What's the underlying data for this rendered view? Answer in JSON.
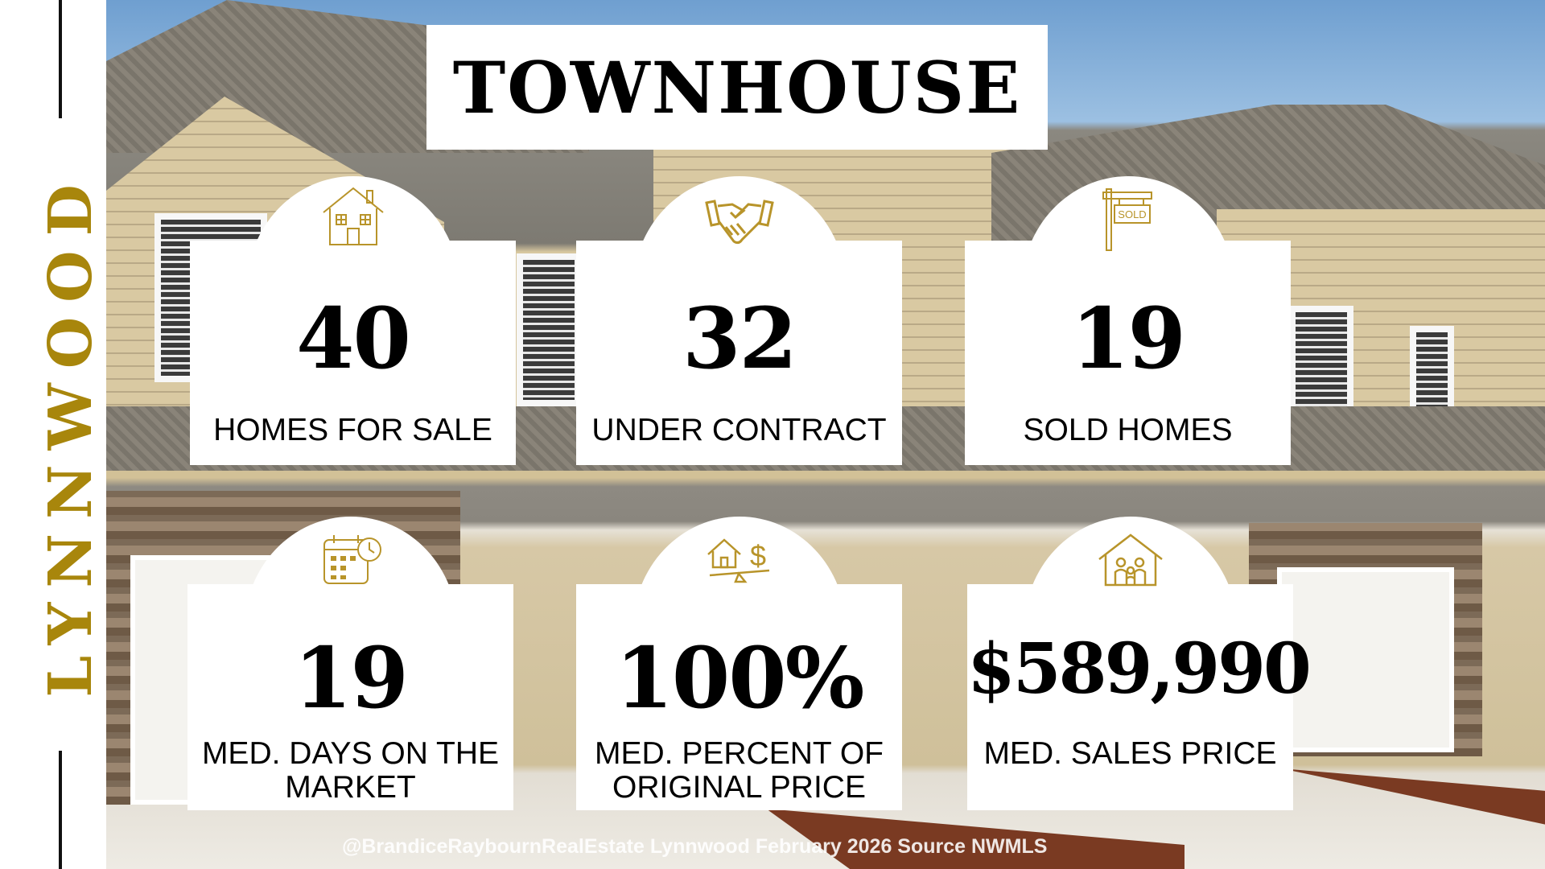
{
  "city": "LYNNWOOD",
  "title": "TOWNHOUSE",
  "colors": {
    "accent": "#a8860c",
    "card": "#ffffff",
    "text": "#000000"
  },
  "stats": [
    {
      "value": "40",
      "label": "HOMES FOR SALE",
      "icon": "house-icon"
    },
    {
      "value": "32",
      "label": "UNDER CONTRACT",
      "icon": "handshake-icon"
    },
    {
      "value": "19",
      "label": "SOLD HOMES",
      "icon": "sold-sign-icon"
    },
    {
      "value": "19",
      "label": "MED. DAYS ON THE MARKET",
      "icon": "calendar-clock-icon"
    },
    {
      "value": "100%",
      "label": "MED. PERCENT OF ORIGINAL PRICE",
      "icon": "house-price-scale-icon"
    },
    {
      "value": "$589,990",
      "label": "MED. SALES PRICE",
      "icon": "family-house-icon"
    }
  ],
  "footer": "@BrandiceRaybournRealEstate Lynnwood February 2026 Source NWMLS"
}
